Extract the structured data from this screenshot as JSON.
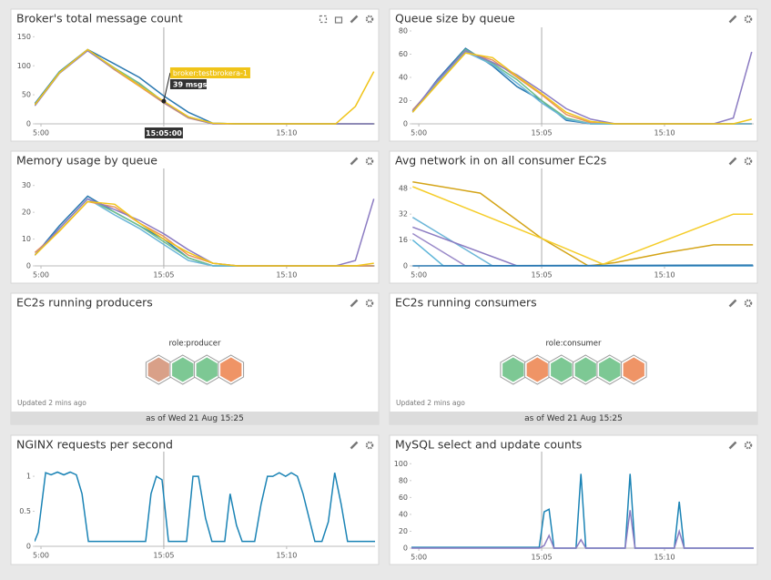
{
  "chart_data": [
    {
      "type": "line",
      "title": "Broker's total message count",
      "x": [
        -0.25,
        0.75,
        1.9,
        3,
        4,
        5,
        6,
        7,
        8,
        9,
        10,
        11,
        12,
        12.8,
        13.55
      ],
      "xlim": [
        -0.26,
        13.6
      ],
      "xticks": [
        {
          "value": 0,
          "label": "5:00"
        },
        {
          "value": 5,
          "label": "15:05"
        },
        {
          "value": 10,
          "label": "15:10"
        }
      ],
      "ylim": [
        0,
        160
      ],
      "yticks": [
        0,
        50,
        100,
        150
      ],
      "series": [
        {
          "color": "#2a78b0",
          "values": [
            35,
            90,
            128,
            103,
            80,
            48,
            20,
            1,
            0,
            0,
            0,
            0,
            0,
            0,
            0
          ]
        },
        {
          "color": "#e8935c",
          "values": [
            32,
            88,
            127,
            93,
            65,
            36,
            10,
            0,
            0,
            0,
            0,
            0,
            0,
            0,
            0
          ]
        },
        {
          "color": "#6dbf8b",
          "values": [
            33,
            89,
            127,
            96,
            70,
            38,
            12,
            1,
            0,
            0,
            0,
            0,
            0,
            0,
            0
          ]
        },
        {
          "color": "#8c7cc2",
          "values": [
            31,
            87,
            126,
            94,
            67,
            37,
            11,
            0,
            0,
            0,
            0,
            0,
            0,
            0,
            0
          ]
        },
        {
          "name": "broker:testbrokera-1",
          "color": "#f0c419",
          "values": [
            33,
            88,
            128,
            95,
            66,
            39,
            12,
            1,
            0,
            0,
            0,
            0,
            0,
            30,
            90
          ]
        }
      ],
      "crosshair": {
        "value": 5,
        "label": "15:05:00"
      },
      "tooltip": {
        "text": "39 msgs"
      }
    },
    {
      "type": "line",
      "title": "Queue size by queue",
      "x": [
        -0.25,
        0.75,
        1.9,
        3,
        4,
        5,
        6,
        7,
        8,
        9,
        10,
        11,
        12,
        12.8,
        13.55
      ],
      "xlim": [
        -0.3,
        13.63
      ],
      "xticks": [
        {
          "value": 0,
          "label": "5:00"
        },
        {
          "value": 5,
          "label": "15:05"
        },
        {
          "value": 10,
          "label": "15:10"
        }
      ],
      "ylim": [
        0,
        80
      ],
      "yticks": [
        0,
        20,
        40,
        60,
        80
      ],
      "series": [
        {
          "color": "#2a78b0",
          "values": [
            10,
            38,
            65,
            50,
            32,
            20,
            3,
            0,
            0,
            0,
            0,
            0,
            0,
            0,
            0
          ]
        },
        {
          "color": "#6dbf8b",
          "values": [
            11,
            36,
            64,
            52,
            38,
            20,
            5,
            0,
            0,
            0,
            0,
            0,
            0,
            0,
            0
          ]
        },
        {
          "color": "#e8935c",
          "values": [
            12,
            35,
            62,
            55,
            40,
            25,
            8,
            1,
            0,
            0,
            0,
            0,
            0,
            0,
            0
          ]
        },
        {
          "color": "#6cb6d8",
          "values": [
            11,
            36,
            62,
            51,
            35,
            18,
            4,
            0,
            0,
            0,
            0,
            0,
            0,
            0,
            0
          ]
        },
        {
          "color": "#8c7cc2",
          "values": [
            11,
            37,
            63,
            53,
            42,
            28,
            13,
            4,
            0,
            0,
            0,
            0,
            0,
            5,
            62
          ]
        },
        {
          "color": "#f0c419",
          "values": [
            10,
            34,
            61,
            57,
            41,
            26,
            10,
            2,
            0,
            0,
            0,
            0,
            0,
            0,
            4
          ]
        }
      ],
      "crosshair_x": 5
    },
    {
      "type": "line",
      "title": "Memory usage by queue",
      "x": [
        -0.25,
        0.75,
        1.9,
        3,
        4,
        5,
        6,
        7,
        8,
        9,
        10,
        11,
        12,
        12.8,
        13.55
      ],
      "xlim": [
        -0.26,
        13.6
      ],
      "xticks": [
        {
          "value": 0,
          "label": "5:00"
        },
        {
          "value": 5,
          "label": "15:05"
        },
        {
          "value": 10,
          "label": "15:10"
        }
      ],
      "ylim": [
        0,
        35
      ],
      "yticks": [
        0,
        10,
        20,
        30
      ],
      "series": [
        {
          "color": "#2a78b0",
          "values": [
            4,
            15,
            26,
            20,
            15,
            10,
            3,
            0,
            0,
            0,
            0,
            0,
            0,
            0,
            0
          ]
        },
        {
          "color": "#6dbf8b",
          "values": [
            4,
            14,
            25,
            20,
            15,
            9,
            3,
            0,
            0,
            0,
            0,
            0,
            0,
            0,
            0
          ]
        },
        {
          "color": "#6cb6d8",
          "values": [
            4,
            14,
            25,
            19,
            14,
            8,
            2,
            0,
            0,
            0,
            0,
            0,
            0,
            0,
            0
          ]
        },
        {
          "color": "#e8935c",
          "values": [
            5,
            13,
            24,
            22,
            16,
            11,
            4,
            1,
            0,
            0,
            0,
            0,
            0,
            0,
            0
          ]
        },
        {
          "color": "#8c7cc2",
          "values": [
            4,
            14,
            25,
            21,
            17,
            12,
            6,
            1,
            0,
            0,
            0,
            0,
            0,
            2,
            25
          ]
        },
        {
          "color": "#f0c419",
          "values": [
            4,
            13,
            24,
            23,
            16,
            10,
            5,
            1,
            0,
            0,
            0,
            0,
            0,
            0,
            1
          ]
        }
      ],
      "crosshair_x": 5
    },
    {
      "type": "line",
      "title": "Avg network in on all consumer EC2s",
      "xlim": [
        -0.3,
        13.63
      ],
      "xticks": [
        {
          "value": 0,
          "label": "5:00"
        },
        {
          "value": 5,
          "label": "15:05"
        },
        {
          "value": 10,
          "label": "15:10"
        }
      ],
      "ylim": [
        0,
        58
      ],
      "yticks": [
        0,
        16,
        32,
        48
      ],
      "series": [
        {
          "color": "#d4a417",
          "x": [
            -0.25,
            2.5,
            5,
            6.9,
            8,
            10,
            12,
            13.6
          ],
          "values": [
            52,
            45,
            17,
            0,
            2,
            8,
            13,
            13
          ]
        },
        {
          "color": "#f5cd2a",
          "x": [
            -0.25,
            5,
            7.5,
            12.8,
            13.6
          ],
          "values": [
            49,
            17,
            1,
            32,
            32
          ]
        },
        {
          "color": "#6cb6d8",
          "x": [
            -0.25,
            3,
            13.6
          ],
          "values": [
            30,
            0,
            0
          ]
        },
        {
          "color": "#8c7cc2",
          "x": [
            -0.25,
            4,
            13.6
          ],
          "values": [
            24,
            0,
            0
          ]
        },
        {
          "color": "#9a8ac9",
          "x": [
            -0.25,
            1.9,
            13.6
          ],
          "values": [
            20,
            0,
            0
          ]
        },
        {
          "color": "#5fb6d9",
          "x": [
            -0.25,
            1,
            13.6
          ],
          "values": [
            16,
            0,
            0
          ]
        },
        {
          "color": "#2a78b0",
          "x": [
            -0.25,
            13.6
          ],
          "values": [
            0,
            0.5
          ]
        }
      ],
      "crosshair_x": 5
    },
    {
      "type": "line",
      "title": "NGINX requests per second",
      "x": [
        -0.26,
        -0.11,
        0.19,
        0.41,
        0.67,
        0.93,
        1.19,
        1.44,
        1.67,
        1.93,
        4.26,
        4.48,
        4.7,
        4.93,
        5.19,
        5.93,
        6.19,
        6.41,
        6.7,
        6.96,
        7.48,
        7.7,
        7.96,
        8.19,
        8.7,
        8.96,
        9.22,
        9.44,
        9.7,
        9.96,
        10.19,
        10.44,
        10.67,
        11.15,
        11.44,
        11.7,
        11.96,
        12.22,
        12.48,
        13.6
      ],
      "xlim": [
        -0.26,
        13.6
      ],
      "xticks": [
        {
          "value": 0,
          "label": "5:00"
        },
        {
          "value": 5,
          "label": "15:05"
        },
        {
          "value": 10,
          "label": "15:10"
        }
      ],
      "ylim": [
        0,
        1.3
      ],
      "yticks": [
        0,
        0.5,
        1
      ],
      "series": [
        {
          "color": "#1a83b5",
          "values": [
            0.07,
            0.2,
            1.05,
            1.02,
            1.06,
            1.02,
            1.06,
            1.02,
            0.75,
            0.07,
            0.07,
            0.75,
            1,
            0.95,
            0.07,
            0.07,
            1,
            1,
            0.4,
            0.07,
            0.07,
            0.75,
            0.3,
            0.07,
            0.07,
            0.6,
            1,
            1,
            1.05,
            1,
            1.05,
            1,
            0.75,
            0.07,
            0.07,
            0.35,
            1.05,
            0.6,
            0.07,
            0.07
          ]
        }
      ],
      "crosshair_x": 5
    },
    {
      "type": "line",
      "title": "MySQL select and update counts",
      "x": [
        -0.3,
        4.9,
        5.1,
        5.3,
        5.5,
        6.4,
        6.6,
        6.8,
        8.4,
        8.6,
        8.8,
        10.4,
        10.6,
        10.8,
        13.63
      ],
      "xlim": [
        -0.3,
        13.63
      ],
      "xticks": [
        {
          "value": 0,
          "label": "5:00"
        },
        {
          "value": 5,
          "label": "15:05"
        },
        {
          "value": 10,
          "label": "15:10"
        }
      ],
      "ylim": [
        0,
        110
      ],
      "yticks": [
        0,
        20,
        40,
        60,
        80,
        100
      ],
      "series": [
        {
          "color": "#1a83b5",
          "values": [
            1,
            1,
            43,
            46,
            0,
            0,
            88,
            0,
            0,
            88,
            0,
            0,
            55,
            0,
            0
          ]
        },
        {
          "color": "#8c7cc2",
          "values": [
            0,
            0,
            3,
            15,
            0,
            0,
            10,
            0,
            0,
            45,
            0,
            0,
            20,
            0,
            0
          ]
        }
      ],
      "crosshair_x": 5
    }
  ],
  "hostmaps": [
    {
      "title": "EC2s running producers",
      "tag": "role:producer",
      "hexes": [
        "#d9a088",
        "#7dc894",
        "#7dc894",
        "#ef9466"
      ],
      "updated": "Updated 2 mins ago",
      "footer": "as of Wed 21 Aug 15:25"
    },
    {
      "title": "EC2s running consumers",
      "tag": "role:consumer",
      "hexes": [
        "#7dc894",
        "#ef9466",
        "#7dc894",
        "#7dc894",
        "#7dc894",
        "#ef9466"
      ],
      "updated": "Updated 2 mins ago",
      "footer": "as of Wed 21 Aug 15:25"
    }
  ]
}
